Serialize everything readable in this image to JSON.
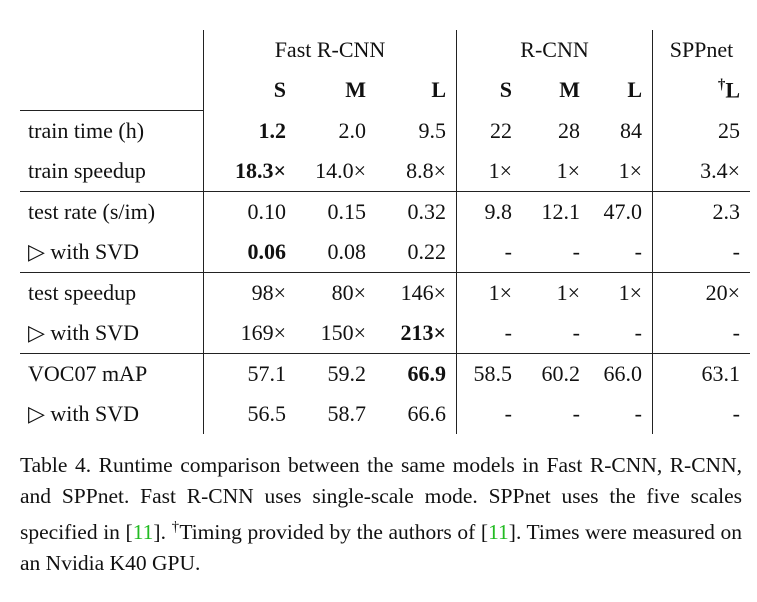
{
  "table": {
    "groups": [
      "Fast R-CNN",
      "R-CNN",
      "SPPnet"
    ],
    "subheaders": [
      "S",
      "M",
      "L",
      "S",
      "M",
      "L",
      {
        "mark": "†",
        "label": "L"
      }
    ],
    "rows": [
      [
        "train time (h)",
        "1.2",
        "2.0",
        "9.5",
        "22",
        "28",
        "84",
        "25"
      ],
      [
        "train speedup",
        "18.3×",
        "14.0×",
        "8.8×",
        "1×",
        "1×",
        "1×",
        "3.4×"
      ],
      [
        "test rate (s/im)",
        "0.10",
        "0.15",
        "0.32",
        "9.8",
        "12.1",
        "47.0",
        "2.3"
      ],
      [
        "▷ with SVD",
        "0.06",
        "0.08",
        "0.22",
        "-",
        "-",
        "-",
        "-"
      ],
      [
        "test speedup",
        "98×",
        "80×",
        "146×",
        "1×",
        "1×",
        "1×",
        "20×"
      ],
      [
        "▷ with SVD",
        "169×",
        "150×",
        "213×",
        "-",
        "-",
        "-",
        "-"
      ],
      [
        "VOC07 mAP",
        "57.1",
        "59.2",
        "66.9",
        "58.5",
        "60.2",
        "66.0",
        "63.1"
      ],
      [
        "▷ with SVD",
        "56.5",
        "58.7",
        "66.6",
        "-",
        "-",
        "-",
        "-"
      ]
    ]
  },
  "caption": {
    "text1": "Table 4. Runtime comparison between the same models in Fast R-CNN, R-CNN, and SPPnet. Fast R-CNN uses single-scale mode. SPPnet uses the five scales specified in [",
    "ref1": "11",
    "text2": "]. ",
    "dagger": "†",
    "text3": "Timing provided by the authors of [",
    "ref2": "11",
    "text4": "]. Times were measured on an Nvidia K40 GPU."
  }
}
